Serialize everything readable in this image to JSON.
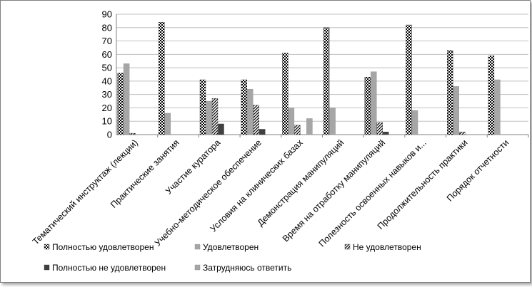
{
  "chart_data": {
    "type": "bar",
    "title": "",
    "xlabel": "",
    "ylabel": "",
    "ylim": [
      0,
      90
    ],
    "yticks": [
      0,
      10,
      20,
      30,
      40,
      50,
      60,
      70,
      80,
      90
    ],
    "grid": true,
    "legend_position": "bottom",
    "categories": [
      "Тематический инструктаж (лекции)",
      "Практические занятия",
      "Участие куратора",
      "Учебно-методическое обеспечение",
      "Условия на клинических базах",
      "Демонстрация манипуляций",
      "Время на отработку манипуляций",
      "Полезность освоенных навыков и...",
      "Продолжительность практики",
      "Порядок отчетности"
    ],
    "series": [
      {
        "name": "Полностью удовлетворен",
        "pattern": "checker",
        "color": "#000000",
        "values": [
          46,
          84,
          41,
          41,
          61,
          80,
          43,
          82,
          63,
          59
        ]
      },
      {
        "name": "Удовлетворен",
        "pattern": "gray",
        "color": "#a6a6a6",
        "values": [
          53,
          16,
          25,
          34,
          20,
          20,
          47,
          18,
          36,
          41
        ]
      },
      {
        "name": "Не удовлетворен",
        "pattern": "diagonal",
        "color": "#000000",
        "values": [
          1,
          0,
          27,
          22,
          7,
          0,
          9,
          0,
          2,
          0
        ]
      },
      {
        "name": "Полностью не удовлетворен",
        "pattern": "dark",
        "color": "#404040",
        "values": [
          0,
          0,
          8,
          4,
          0,
          0,
          2,
          0,
          0,
          0
        ]
      },
      {
        "name": "Затрудняюсь ответить",
        "pattern": "gray",
        "color": "#a6a6a6",
        "values": [
          0,
          0,
          0,
          0,
          12,
          0,
          0,
          0,
          0,
          0
        ]
      }
    ]
  }
}
